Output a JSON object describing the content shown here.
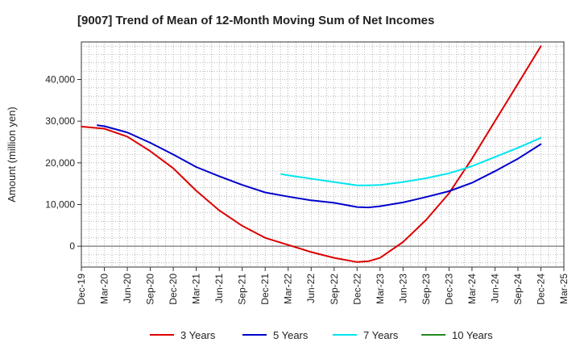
{
  "chart_data": {
    "type": "line",
    "title": "[9007]  Trend of Mean of 12-Month Moving Sum of Net Incomes",
    "xlabel": "",
    "ylabel": "Amount (million yen)",
    "ylim": [
      -5000,
      49000
    ],
    "yticks": [
      0,
      10000,
      20000,
      30000,
      40000
    ],
    "ytick_labels": [
      "0",
      "10,000",
      "20,000",
      "30,000",
      "40,000"
    ],
    "xticks": [
      "Dec-19",
      "Mar-20",
      "Jun-20",
      "Sep-20",
      "Dec-20",
      "Mar-21",
      "Jun-21",
      "Sep-21",
      "Dec-21",
      "Mar-22",
      "Jun-22",
      "Sep-22",
      "Dec-22",
      "Mar-23",
      "Jun-23",
      "Sep-23",
      "Dec-23",
      "Mar-24",
      "Jun-24",
      "Sep-24",
      "Dec-24",
      "Mar-25"
    ],
    "x_range_quarters": [
      0,
      21
    ],
    "grid": true,
    "legend_position": "bottom",
    "series": [
      {
        "name": "3 Years",
        "color": "#dd0000",
        "x": [
          0,
          1,
          2,
          3,
          4,
          5,
          6,
          7,
          8,
          9,
          10,
          11,
          12,
          12.5,
          13,
          14,
          15,
          16,
          17,
          18,
          19,
          20
        ],
        "values": [
          28700,
          28200,
          26300,
          22800,
          18700,
          13300,
          8600,
          4900,
          2000,
          300,
          -1400,
          -2800,
          -3800,
          -3600,
          -2800,
          1000,
          6300,
          12700,
          21000,
          30000,
          39000,
          48000
        ]
      },
      {
        "name": "5 Years",
        "color": "#0000cc",
        "x": [
          0.7,
          1,
          2,
          3,
          4,
          5,
          6,
          7,
          8,
          9,
          10,
          11,
          12,
          12.5,
          13,
          14,
          15,
          16,
          17,
          18,
          19,
          20
        ],
        "values": [
          29000,
          28800,
          27300,
          24800,
          22000,
          19000,
          16800,
          14700,
          12900,
          11900,
          11000,
          10400,
          9400,
          9300,
          9600,
          10500,
          11800,
          13200,
          15200,
          18000,
          21000,
          24500
        ]
      },
      {
        "name": "7 Years",
        "color": "#00e5ee",
        "x": [
          8.7,
          9,
          10,
          11,
          12,
          12.5,
          13,
          14,
          15,
          16,
          17,
          18,
          19,
          20
        ],
        "values": [
          17300,
          17000,
          16200,
          15400,
          14600,
          14600,
          14700,
          15400,
          16300,
          17500,
          19200,
          21400,
          23600,
          26000
        ]
      },
      {
        "name": "10 Years",
        "color": "#228b22",
        "x": [],
        "values": []
      }
    ]
  }
}
